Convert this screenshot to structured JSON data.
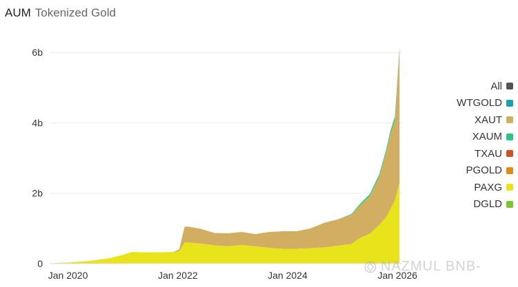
{
  "header": {
    "title": "AUM",
    "subtitle": "Tokenized Gold"
  },
  "watermark": "NAZMUL BNB-",
  "chart_data": {
    "type": "area",
    "stacked": true,
    "ylim": [
      0,
      6.2
    ],
    "y_ticks": [
      0,
      2,
      4,
      6
    ],
    "y_tick_labels": [
      "0",
      "2b",
      "4b",
      "6b"
    ],
    "x_ticks": [
      "2020-01-01",
      "2022-01-01",
      "2024-01-01",
      "2026-01-01"
    ],
    "x_tick_labels": [
      "Jan 2020",
      "Jan 2022",
      "Jan 2024",
      "Jan 2026"
    ],
    "x_range": [
      "2019-09-01",
      "2026-02-01"
    ],
    "grid": true,
    "legend_position": "right",
    "dates": [
      "2019-09-01",
      "2020-01-01",
      "2020-06-01",
      "2020-10-01",
      "2021-01-01",
      "2021-03-01",
      "2021-06-01",
      "2021-09-01",
      "2021-12-01",
      "2022-01-10",
      "2022-02-15",
      "2022-03-10",
      "2022-06-01",
      "2022-09-01",
      "2022-12-01",
      "2023-03-01",
      "2023-06-01",
      "2023-09-01",
      "2023-12-01",
      "2024-03-01",
      "2024-06-01",
      "2024-09-01",
      "2024-12-01",
      "2025-03-01",
      "2025-05-01",
      "2025-07-01",
      "2025-09-01",
      "2025-10-15",
      "2025-11-15",
      "2025-12-15",
      "2026-01-15"
    ],
    "series": [
      {
        "name": "PAXG",
        "color": "#e8e31b",
        "values": [
          0.01,
          0.03,
          0.08,
          0.15,
          0.25,
          0.33,
          0.32,
          0.32,
          0.33,
          0.35,
          0.6,
          0.6,
          0.57,
          0.52,
          0.49,
          0.53,
          0.49,
          0.45,
          0.42,
          0.42,
          0.44,
          0.46,
          0.51,
          0.56,
          0.74,
          0.85,
          1.1,
          1.3,
          1.55,
          1.8,
          2.3
        ]
      },
      {
        "name": "XAUT",
        "color": "#d1ae62",
        "values": [
          0,
          0,
          0,
          0,
          0,
          0,
          0,
          0,
          0,
          0.05,
          0.45,
          0.45,
          0.42,
          0.35,
          0.37,
          0.37,
          0.35,
          0.45,
          0.5,
          0.5,
          0.56,
          0.7,
          0.75,
          0.82,
          0.92,
          1.05,
          1.35,
          1.8,
          2.1,
          2.25,
          3.7
        ]
      },
      {
        "name": "DGLD",
        "color": "#7ec535",
        "values": [
          0,
          0,
          0,
          0,
          0,
          0,
          0,
          0,
          0,
          0,
          0,
          0,
          0,
          0,
          0,
          0,
          0,
          0,
          0,
          0,
          0,
          0,
          0,
          0.01,
          0.02,
          0.02,
          0.02,
          0.02,
          0.03,
          0.03,
          0.03
        ]
      },
      {
        "name": "XAUM",
        "color": "#2ec486",
        "values": [
          0,
          0,
          0,
          0,
          0,
          0,
          0,
          0,
          0,
          0,
          0,
          0,
          0,
          0,
          0,
          0,
          0,
          0,
          0,
          0,
          0,
          0,
          0,
          0.02,
          0.04,
          0.05,
          0.06,
          0.07,
          0.08,
          0.09,
          0.1
        ]
      },
      {
        "name": "WTGOLD",
        "color": "#1f9fae",
        "values": [
          0,
          0,
          0,
          0,
          0,
          0,
          0,
          0,
          0,
          0,
          0,
          0,
          0,
          0,
          0,
          0,
          0,
          0,
          0,
          0,
          0,
          0,
          0,
          0,
          0,
          0,
          0,
          0,
          0.01,
          0.01,
          0.01
        ]
      }
    ],
    "legend": [
      {
        "label": "All",
        "color": "#555555"
      },
      {
        "label": "WTGOLD",
        "color": "#1f9fae"
      },
      {
        "label": "XAUT",
        "color": "#d1ae62"
      },
      {
        "label": "XAUM",
        "color": "#2ec486"
      },
      {
        "label": "TXAU",
        "color": "#cf4f2c"
      },
      {
        "label": "PGOLD",
        "color": "#e08a1c"
      },
      {
        "label": "PAXG",
        "color": "#e8e31b"
      },
      {
        "label": "DGLD",
        "color": "#7ec535"
      }
    ]
  }
}
